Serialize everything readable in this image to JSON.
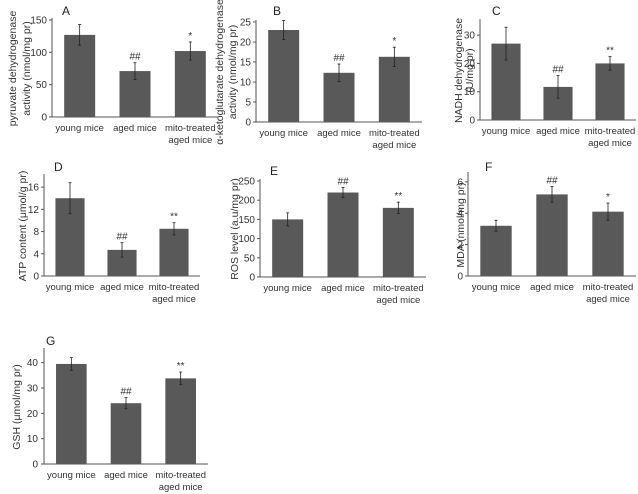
{
  "chart_data": [
    {
      "type": "bar",
      "panel": "A",
      "title": "",
      "ylabel": [
        "pyruvate dehydrogenase",
        "activity (nmol/mg pr)"
      ],
      "categories": [
        [
          "young mice"
        ],
        [
          "aged mice"
        ],
        [
          "mito-treated",
          "aged mice"
        ]
      ],
      "values": [
        127,
        71,
        102
      ],
      "errors": [
        16,
        13,
        14
      ],
      "annotations": [
        "",
        "##",
        "*"
      ],
      "ylim": [
        0,
        150
      ],
      "yticks": [
        0,
        50,
        100,
        150
      ],
      "ytick_labels": [
        "0",
        "50",
        "100",
        "150"
      ],
      "grid": false
    },
    {
      "type": "bar",
      "panel": "B",
      "title": "",
      "ylabel": [
        "α-ketoglutarate dehydrogenase",
        "activity (nmol/mg pr)"
      ],
      "categories": [
        [
          "young mice"
        ],
        [
          "aged mice"
        ],
        [
          "mito-treated",
          "aged mice"
        ]
      ],
      "values": [
        23,
        12.3,
        16.3
      ],
      "errors": [
        2.4,
        2.2,
        2.4
      ],
      "annotations": [
        "",
        "##",
        "*"
      ],
      "ylim": [
        0,
        25
      ],
      "yticks": [
        0,
        5,
        10,
        15,
        20,
        25
      ],
      "ytick_labels": [
        "0",
        "5",
        "10",
        "15",
        "20",
        "25"
      ],
      "grid": false
    },
    {
      "type": "bar",
      "panel": "C",
      "title": "",
      "ylabel": [
        "NADH dehydrogenase",
        "(U/mg pr)"
      ],
      "categories": [
        [
          "young mice"
        ],
        [
          "aged mice"
        ],
        [
          "mito-treated",
          "aged mice"
        ]
      ],
      "values": [
        27,
        11.7,
        20
      ],
      "errors": [
        5.8,
        4,
        2.4
      ],
      "annotations": [
        "",
        "##",
        "**"
      ],
      "ylim": [
        0,
        35
      ],
      "yticks": [
        0,
        10,
        20,
        30
      ],
      "ytick_labels": [
        "0",
        "10",
        "20",
        "30"
      ],
      "grid": false
    },
    {
      "type": "bar",
      "panel": "D",
      "title": "",
      "ylabel": [
        "ATP content (μmol/g pr)"
      ],
      "categories": [
        [
          "young mice"
        ],
        [
          "aged mice"
        ],
        [
          "mito-treated",
          "aged mice"
        ]
      ],
      "values": [
        14,
        4.7,
        8.5
      ],
      "errors": [
        2.8,
        1.3,
        1.1
      ],
      "annotations": [
        "",
        "##",
        "**"
      ],
      "ylim": [
        0,
        18
      ],
      "yticks": [
        0,
        4,
        8,
        12,
        16
      ],
      "ytick_labels": [
        "0",
        "4",
        "8",
        "12",
        "16"
      ],
      "grid": false
    },
    {
      "type": "bar",
      "panel": "E",
      "title": "",
      "ylabel": [
        "ROS level (a.u/mg pr)"
      ],
      "categories": [
        [
          "young mice"
        ],
        [
          "aged mice"
        ],
        [
          "mito-treated",
          "aged mice"
        ]
      ],
      "values": [
        150,
        220,
        180
      ],
      "errors": [
        17,
        13,
        15
      ],
      "annotations": [
        "",
        "##",
        "**"
      ],
      "ylim": [
        0,
        250
      ],
      "yticks": [
        0,
        50,
        100,
        150,
        200,
        250
      ],
      "ytick_labels": [
        "0",
        "50",
        "100",
        "150",
        "200",
        "250"
      ],
      "grid": false
    },
    {
      "type": "bar",
      "panel": "F",
      "title": "",
      "ylabel": [
        "MDA (nmol/mg pr)"
      ],
      "categories": [
        [
          "young mice"
        ],
        [
          "aged mice"
        ],
        [
          "mito-treated",
          "aged mice"
        ]
      ],
      "values": [
        3.2,
        5.2,
        4.1
      ],
      "errors": [
        0.35,
        0.5,
        0.55
      ],
      "annotations": [
        "",
        "##",
        "*"
      ],
      "ylim": [
        0,
        6.5
      ],
      "yticks": [
        0,
        2,
        4,
        6
      ],
      "ytick_labels": [
        "0",
        "2",
        "4",
        "6"
      ],
      "grid": false
    },
    {
      "type": "bar",
      "panel": "G",
      "title": "",
      "ylabel": [
        "GSH (μmol/mg pr)"
      ],
      "categories": [
        [
          "young mice"
        ],
        [
          "aged mice"
        ],
        [
          "mito-treated",
          "aged mice"
        ]
      ],
      "values": [
        39.5,
        24,
        33.8
      ],
      "errors": [
        2.5,
        2.2,
        2.5
      ],
      "annotations": [
        "",
        "##",
        "**"
      ],
      "ylim": [
        0,
        45
      ],
      "yticks": [
        0,
        10,
        20,
        30,
        40
      ],
      "ytick_labels": [
        "0",
        "10",
        "20",
        "30",
        "40"
      ],
      "grid": false
    }
  ]
}
